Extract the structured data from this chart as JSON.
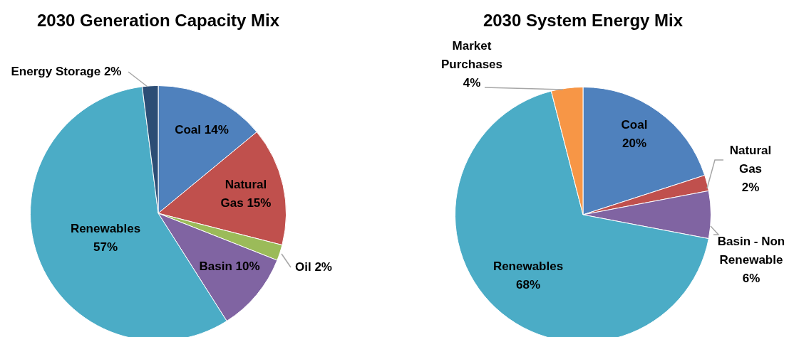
{
  "chart_data": [
    {
      "type": "pie",
      "title": "2030 Generation Capacity Mix",
      "categories": [
        "Coal",
        "Natural Gas",
        "Oil",
        "Basin",
        "Renewables",
        "Energy Storage"
      ],
      "values": [
        14,
        15,
        2,
        10,
        57,
        2
      ],
      "value_labels": [
        "14%",
        "15%",
        "2%",
        "10%",
        "57%",
        "2%"
      ],
      "colors": [
        "#4f81bd",
        "#c0504d",
        "#9bbb59",
        "#8064a2",
        "#4bacc6",
        "#2c4d75"
      ],
      "legend": false
    },
    {
      "type": "pie",
      "title": "2030 System Energy Mix",
      "categories": [
        "Coal",
        "Natural Gas",
        "Basin - Non Renewable",
        "Renewables",
        "Market Purchases"
      ],
      "values": [
        20,
        2,
        6,
        68,
        4
      ],
      "value_labels": [
        "20%",
        "2%",
        "6%",
        "68%",
        "4%"
      ],
      "colors": [
        "#4f81bd",
        "#c0504d",
        "#8064a2",
        "#4bacc6",
        "#f79646"
      ],
      "legend": false
    }
  ]
}
